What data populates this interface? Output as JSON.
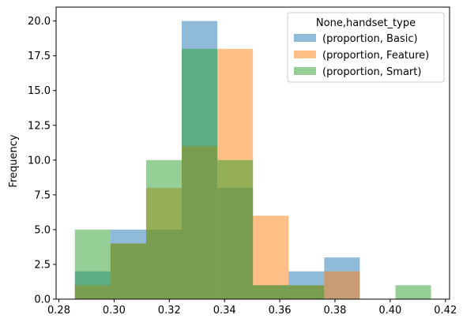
{
  "chart_data": {
    "type": "bar",
    "subtype": "histogram",
    "ylabel": "Frequency",
    "xlabel": "",
    "xlim": [
      0.279,
      0.4215
    ],
    "ylim": [
      0,
      21
    ],
    "x_ticks": [
      0.28,
      0.3,
      0.32,
      0.34,
      0.36,
      0.38,
      0.4,
      0.42
    ],
    "x_tick_labels": [
      "0.28",
      "0.30",
      "0.32",
      "0.34",
      "0.36",
      "0.38",
      "0.40",
      "0.42"
    ],
    "y_ticks": [
      0,
      2.5,
      5,
      7.5,
      10,
      12.5,
      15,
      17.5,
      20
    ],
    "y_tick_labels": [
      "0.0",
      "2.5",
      "5.0",
      "7.5",
      "10.0",
      "12.5",
      "15.0",
      "17.5",
      "20.0"
    ],
    "bin_edges": [
      0.2858,
      0.2987,
      0.3116,
      0.3245,
      0.3374,
      0.3503,
      0.3632,
      0.3761,
      0.389,
      0.4019,
      0.4148
    ],
    "alpha": 0.5,
    "legend": {
      "title": "None,handset_type",
      "placement": "top-right"
    },
    "series": [
      {
        "name": "(proportion, Basic)",
        "color": "#1f77b4",
        "values": [
          2,
          5,
          5,
          20,
          8,
          1,
          2,
          3,
          0,
          0
        ]
      },
      {
        "name": "(proportion, Feature)",
        "color": "#ff7f0e",
        "values": [
          1,
          4,
          8,
          11,
          18,
          6,
          1,
          2,
          0,
          0
        ]
      },
      {
        "name": "(proportion, Smart)",
        "color": "#2ca02c",
        "values": [
          5,
          4,
          10,
          18,
          10,
          1,
          1,
          0,
          0,
          1
        ]
      }
    ]
  }
}
